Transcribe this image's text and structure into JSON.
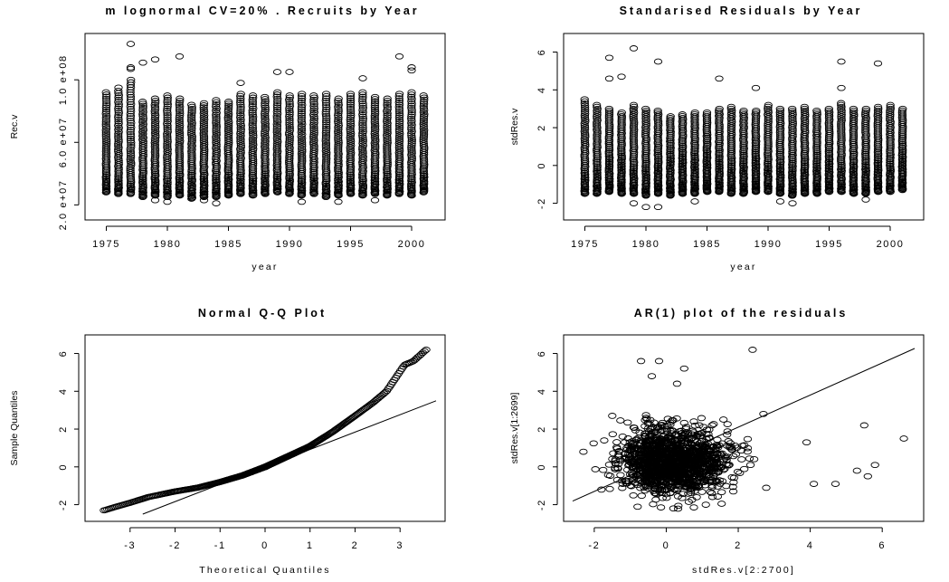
{
  "chart_data": [
    {
      "id": "recruits",
      "type": "scatter",
      "title": "m lognormal CV=20% . Recruits by Year",
      "xlabel": "year",
      "ylabel": "Rec.v",
      "xlim": [
        1974,
        2002
      ],
      "ylim": [
        15000000,
        125000000
      ],
      "xticks": [
        1975,
        1980,
        1985,
        1990,
        1995,
        2000
      ],
      "xtick_labels": [
        "1975",
        "1980",
        "1985",
        "1990",
        "1995",
        "2000"
      ],
      "yticks": [
        20000000,
        60000000,
        100000000
      ],
      "ytick_labels": [
        "2.0 e+07",
        "6.0 e+07",
        "1.0 e+08"
      ],
      "x_years": [
        1975,
        1976,
        1977,
        1978,
        1979,
        1980,
        1981,
        1982,
        1983,
        1984,
        1985,
        1986,
        1987,
        1988,
        1989,
        1990,
        1991,
        1992,
        1993,
        1994,
        1995,
        1996,
        1997,
        1998,
        1999,
        2000,
        2001
      ],
      "column_ranges": [
        [
          28000000,
          92000000
        ],
        [
          27000000,
          93000000
        ],
        [
          27000000,
          100000000
        ],
        [
          25000000,
          86000000
        ],
        [
          26000000,
          88000000
        ],
        [
          25000000,
          90000000
        ],
        [
          26000000,
          88000000
        ],
        [
          24000000,
          84000000
        ],
        [
          25000000,
          85000000
        ],
        [
          25000000,
          87000000
        ],
        [
          26000000,
          86000000
        ],
        [
          27000000,
          91000000
        ],
        [
          26000000,
          90000000
        ],
        [
          27000000,
          89000000
        ],
        [
          28000000,
          92000000
        ],
        [
          27000000,
          90000000
        ],
        [
          26000000,
          91000000
        ],
        [
          27000000,
          90000000
        ],
        [
          25000000,
          91000000
        ],
        [
          26000000,
          88000000
        ],
        [
          27000000,
          91000000
        ],
        [
          26000000,
          92000000
        ],
        [
          27000000,
          89000000
        ],
        [
          26000000,
          88000000
        ],
        [
          27000000,
          91000000
        ],
        [
          26000000,
          92000000
        ],
        [
          28000000,
          90000000
        ]
      ],
      "outliers": [
        [
          1977,
          123000000
        ],
        [
          1977,
          108000000
        ],
        [
          1977,
          107000000
        ],
        [
          1978,
          111000000
        ],
        [
          1979,
          113000000
        ],
        [
          1981,
          115000000
        ],
        [
          1976,
          95000000
        ],
        [
          1986,
          98000000
        ],
        [
          1989,
          105000000
        ],
        [
          1990,
          105000000
        ],
        [
          1996,
          101000000
        ],
        [
          1999,
          115000000
        ],
        [
          2000,
          108000000
        ],
        [
          2000,
          106000000
        ],
        [
          1979,
          23000000
        ],
        [
          1980,
          22000000
        ],
        [
          1984,
          21000000
        ],
        [
          1991,
          22000000
        ],
        [
          1994,
          22000000
        ],
        [
          1997,
          23000000
        ],
        [
          1983,
          23000000
        ]
      ]
    },
    {
      "id": "residuals",
      "type": "scatter",
      "title": "Standarised Residuals by Year",
      "xlabel": "year",
      "ylabel": "stdRes.v",
      "xlim": [
        1974,
        2002
      ],
      "ylim": [
        -2.5,
        6.6
      ],
      "xticks": [
        1975,
        1980,
        1985,
        1990,
        1995,
        2000
      ],
      "xtick_labels": [
        "1975",
        "1980",
        "1985",
        "1990",
        "1995",
        "2000"
      ],
      "yticks": [
        -2,
        0,
        2,
        4,
        6
      ],
      "ytick_labels": [
        "-2",
        "0",
        "2",
        "4",
        "6"
      ],
      "x_years": [
        1975,
        1976,
        1977,
        1978,
        1979,
        1980,
        1981,
        1982,
        1983,
        1984,
        1985,
        1986,
        1987,
        1988,
        1989,
        1990,
        1991,
        1992,
        1993,
        1994,
        1995,
        1996,
        1997,
        1998,
        1999,
        2000,
        2001
      ],
      "column_ranges": [
        [
          -1.5,
          3.5
        ],
        [
          -1.5,
          3.2
        ],
        [
          -1.4,
          3.0
        ],
        [
          -1.5,
          2.8
        ],
        [
          -1.5,
          3.2
        ],
        [
          -1.6,
          3.0
        ],
        [
          -1.5,
          2.9
        ],
        [
          -1.6,
          2.6
        ],
        [
          -1.5,
          2.7
        ],
        [
          -1.5,
          2.8
        ],
        [
          -1.4,
          2.8
        ],
        [
          -1.4,
          3.0
        ],
        [
          -1.5,
          3.1
        ],
        [
          -1.5,
          2.9
        ],
        [
          -1.4,
          2.9
        ],
        [
          -1.4,
          3.2
        ],
        [
          -1.5,
          3.0
        ],
        [
          -1.6,
          3.0
        ],
        [
          -1.5,
          3.1
        ],
        [
          -1.5,
          2.9
        ],
        [
          -1.4,
          3.0
        ],
        [
          -1.4,
          3.3
        ],
        [
          -1.5,
          3.0
        ],
        [
          -1.5,
          3.0
        ],
        [
          -1.4,
          3.1
        ],
        [
          -1.4,
          3.2
        ],
        [
          -1.3,
          3.0
        ]
      ],
      "outliers": [
        [
          1977,
          5.7
        ],
        [
          1977,
          4.6
        ],
        [
          1978,
          4.7
        ],
        [
          1979,
          6.2
        ],
        [
          1981,
          5.5
        ],
        [
          1986,
          4.6
        ],
        [
          1989,
          4.1
        ],
        [
          1996,
          5.5
        ],
        [
          1996,
          4.1
        ],
        [
          1999,
          5.4
        ],
        [
          1979,
          -2.0
        ],
        [
          1980,
          -2.2
        ],
        [
          1981,
          -2.2
        ],
        [
          1984,
          -1.9
        ],
        [
          1991,
          -1.9
        ],
        [
          1992,
          -2.0
        ],
        [
          1998,
          -1.8
        ]
      ]
    },
    {
      "id": "qq",
      "type": "scatter",
      "title": "Normal Q-Q Plot",
      "xlabel": "Theoretical Quantiles",
      "ylabel": "Sample Quantiles",
      "xlim": [
        -3.8,
        3.8
      ],
      "ylim": [
        -2.5,
        6.6
      ],
      "xticks": [
        -3,
        -2,
        -1,
        0,
        1,
        2,
        3
      ],
      "xtick_labels": [
        "-3",
        "-2",
        "-1",
        "0",
        "1",
        "2",
        "3"
      ],
      "yticks": [
        -2,
        0,
        2,
        4,
        6
      ],
      "ytick_labels": [
        "-2",
        "0",
        "2",
        "4",
        "6"
      ],
      "n_points": 2700,
      "reference_line": {
        "intercept": 0.0,
        "slope": 0.92
      },
      "curve": [
        [
          -3.58,
          -2.3
        ],
        [
          -3.3,
          -2.1
        ],
        [
          -3.0,
          -1.9
        ],
        [
          -2.6,
          -1.6
        ],
        [
          -2.0,
          -1.3
        ],
        [
          -1.5,
          -1.1
        ],
        [
          -1.0,
          -0.8
        ],
        [
          -0.5,
          -0.45
        ],
        [
          0.0,
          0.0
        ],
        [
          0.5,
          0.55
        ],
        [
          1.0,
          1.1
        ],
        [
          1.5,
          1.85
        ],
        [
          2.0,
          2.7
        ],
        [
          2.4,
          3.4
        ],
        [
          2.7,
          4.0
        ],
        [
          2.9,
          4.7
        ],
        [
          3.1,
          5.4
        ],
        [
          3.3,
          5.6
        ],
        [
          3.58,
          6.2
        ]
      ]
    },
    {
      "id": "ar1",
      "type": "scatter",
      "title": "AR(1) plot of the residuals",
      "xlabel": "stdRes.v[2:2700]",
      "ylabel": "stdRes.v[1:2699]",
      "xlim": [
        -2.6,
        6.9
      ],
      "ylim": [
        -2.5,
        6.6
      ],
      "xticks": [
        -2,
        0,
        2,
        4,
        6
      ],
      "xtick_labels": [
        "-2",
        "0",
        "2",
        "4",
        "6"
      ],
      "yticks": [
        -2,
        0,
        2,
        4,
        6
      ],
      "ytick_labels": [
        "-2",
        "0",
        "2",
        "4",
        "6"
      ],
      "n_points": 2699,
      "reference_line": {
        "intercept": 0.4,
        "slope": 0.85
      },
      "outliers": [
        [
          2.4,
          6.2
        ],
        [
          -0.7,
          5.6
        ],
        [
          -0.2,
          5.6
        ],
        [
          0.5,
          5.2
        ],
        [
          -0.4,
          4.8
        ],
        [
          0.3,
          4.4
        ],
        [
          5.5,
          2.2
        ],
        [
          6.6,
          1.5
        ],
        [
          4.7,
          -0.9
        ],
        [
          5.6,
          -0.5
        ],
        [
          5.3,
          -0.2
        ],
        [
          5.8,
          0.1
        ],
        [
          4.1,
          -0.9
        ],
        [
          -1.8,
          -1.2
        ],
        [
          -2.3,
          0.8
        ],
        [
          0.2,
          -2.2
        ],
        [
          1.1,
          -2.0
        ],
        [
          3.9,
          1.3
        ],
        [
          2.7,
          2.8
        ],
        [
          -1.5,
          2.7
        ]
      ]
    }
  ]
}
